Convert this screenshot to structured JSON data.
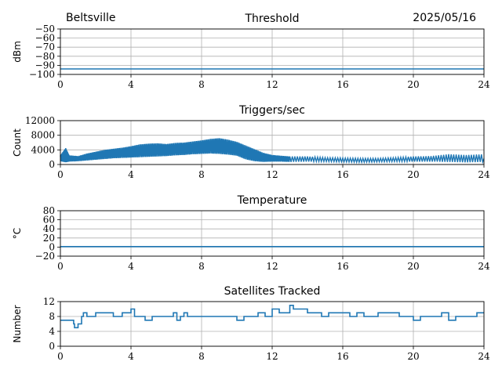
{
  "header": {
    "location": "Beltsville",
    "date": "2025/05/16"
  },
  "colors": {
    "series": "#1f77b4",
    "grid": "#b0b0b0",
    "axis": "#000000"
  },
  "chart_data": [
    {
      "type": "line",
      "title": "Threshold",
      "ylabel": "dBm",
      "xlim": [
        0,
        24
      ],
      "ylim": [
        -100,
        -50
      ],
      "xticks": [
        0,
        4,
        8,
        12,
        16,
        20,
        24
      ],
      "yticks": [
        -100,
        -90,
        -80,
        -70,
        -60,
        -50
      ],
      "grid": true,
      "series": [
        {
          "x": [
            0,
            2,
            4,
            6,
            8,
            10,
            12,
            14,
            16,
            18,
            20,
            22,
            24
          ],
          "y": [
            -94,
            -94,
            -94,
            -94,
            -94,
            -94,
            -94,
            -94,
            -94,
            -94,
            -94,
            -94,
            -94
          ]
        }
      ]
    },
    {
      "type": "line",
      "title": "Triggers/sec",
      "ylabel": "Count",
      "xlim": [
        0,
        24
      ],
      "ylim": [
        0,
        12000
      ],
      "xticks": [
        0,
        4,
        8,
        12,
        16,
        20,
        24
      ],
      "yticks": [
        0,
        4000,
        8000,
        12000
      ],
      "grid": true,
      "series": [
        {
          "x": [
            0,
            0.3,
            0.5,
            1,
            1.5,
            2,
            2.5,
            3,
            3.5,
            4,
            4.5,
            5,
            5.5,
            6,
            6.5,
            7,
            7.5,
            8,
            8.5,
            9,
            9.5,
            10,
            10.5,
            11,
            11.5,
            12,
            12.5,
            13,
            14,
            15,
            16,
            17,
            18,
            19,
            20,
            21,
            22,
            23,
            24
          ],
          "y": [
            1500,
            2500,
            1200,
            1300,
            1800,
            2200,
            2600,
            2900,
            3100,
            3300,
            3500,
            3600,
            3700,
            3800,
            4000,
            4300,
            4600,
            4800,
            5000,
            4900,
            4700,
            4300,
            3500,
            2500,
            2000,
            1800,
            1700,
            1600,
            1500,
            1400,
            1300,
            1200,
            1200,
            1300,
            1300,
            1400,
            1500,
            1500,
            1600
          ],
          "upper": [
            2500,
            4500,
            2500,
            2300,
            3000,
            3500,
            4000,
            4300,
            4600,
            5000,
            5500,
            5700,
            5800,
            5600,
            5900,
            6000,
            6300,
            6600,
            7000,
            7200,
            6800,
            6200,
            5200,
            4200,
            3200,
            2600,
            2400,
            2200,
            2200,
            1900,
            1800,
            1700,
            1700,
            1900,
            2200,
            2300,
            2800,
            2600,
            2800
          ],
          "lower": [
            900,
            600,
            800,
            900,
            1100,
            1300,
            1500,
            1700,
            1800,
            1900,
            2000,
            2100,
            2200,
            2300,
            2500,
            2600,
            2800,
            2900,
            3000,
            2900,
            2700,
            2400,
            1400,
            900,
            700,
            800,
            800,
            700,
            800,
            800,
            700,
            600,
            700,
            800,
            800,
            800,
            700,
            600,
            700
          ]
        }
      ]
    },
    {
      "type": "line",
      "title": "Temperature",
      "ylabel": "°C",
      "xlim": [
        0,
        24
      ],
      "ylim": [
        -20,
        80
      ],
      "xticks": [
        0,
        4,
        8,
        12,
        16,
        20,
        24
      ],
      "yticks": [
        -20,
        0,
        20,
        40,
        60,
        80
      ],
      "grid": true,
      "series": [
        {
          "x": [
            0,
            4,
            8,
            12,
            16,
            20,
            24
          ],
          "y": [
            1,
            1,
            1,
            1,
            1,
            1,
            1
          ]
        }
      ]
    },
    {
      "type": "line",
      "title": "Satellites Tracked",
      "ylabel": "Number",
      "xlim": [
        0,
        24
      ],
      "ylim": [
        0,
        12
      ],
      "xticks": [
        0,
        4,
        8,
        12,
        16,
        20,
        24
      ],
      "yticks": [
        0,
        4,
        8,
        12
      ],
      "grid": true,
      "series": [
        {
          "x": [
            0,
            0.6,
            0.75,
            0.8,
            1.0,
            1.2,
            1.3,
            1.5,
            2.0,
            2.5,
            3.0,
            3.5,
            3.8,
            4.0,
            4.2,
            4.4,
            4.8,
            5.2,
            5.6,
            6.0,
            6.4,
            6.6,
            6.8,
            7.0,
            7.2,
            7.6,
            8.0,
            8.4,
            8.8,
            9.2,
            9.6,
            10.0,
            10.4,
            10.8,
            11.2,
            11.6,
            12.0,
            12.4,
            12.8,
            13.0,
            13.2,
            13.6,
            14.0,
            14.4,
            14.8,
            15.2,
            15.6,
            16.0,
            16.4,
            16.8,
            17.2,
            17.6,
            18.0,
            18.4,
            18.8,
            19.2,
            19.6,
            20.0,
            20.4,
            20.8,
            21.2,
            21.6,
            22.0,
            22.4,
            22.8,
            23.2,
            23.6,
            24.0
          ],
          "y": [
            7,
            7,
            6,
            5,
            6,
            8,
            9,
            8,
            9,
            9,
            8,
            9,
            9,
            10,
            8,
            8,
            7,
            8,
            8,
            8,
            9,
            7,
            8,
            9,
            8,
            8,
            8,
            8,
            8,
            8,
            8,
            7,
            8,
            8,
            9,
            8,
            10,
            9,
            9,
            11,
            10,
            10,
            9,
            9,
            8,
            9,
            9,
            9,
            8,
            9,
            8,
            8,
            9,
            9,
            9,
            8,
            8,
            7,
            8,
            8,
            8,
            9,
            7,
            8,
            8,
            8,
            9,
            9
          ]
        }
      ]
    }
  ]
}
